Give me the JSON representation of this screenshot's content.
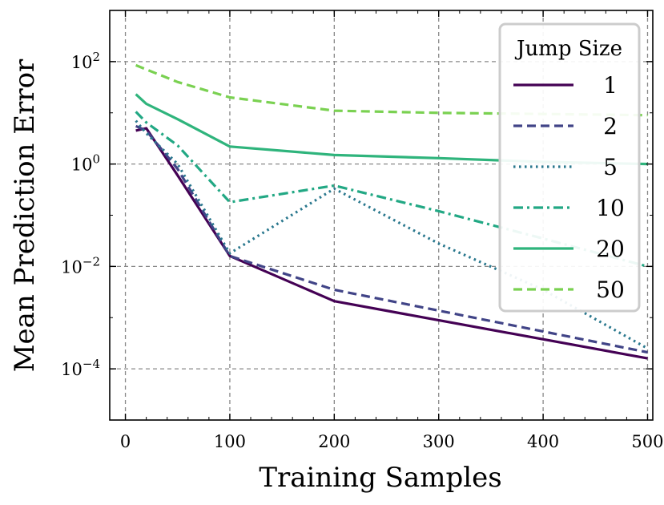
{
  "chart_data": {
    "type": "line",
    "xlabel": "Training Samples",
    "ylabel": "Mean Prediction Error",
    "yscale": "log",
    "xlim": [
      -15,
      505
    ],
    "ylim": [
      1e-05,
      1000
    ],
    "xticks": [
      0,
      100,
      200,
      300,
      400,
      500
    ],
    "yticks": [
      {
        "value": 0.0001,
        "base": "10",
        "exp": "−4"
      },
      {
        "value": 0.01,
        "base": "10",
        "exp": "−2"
      },
      {
        "value": 1,
        "base": "10",
        "exp": "0"
      },
      {
        "value": 100,
        "base": "10",
        "exp": "2"
      }
    ],
    "grid": true,
    "legend": {
      "title": "Jump Size",
      "position": "top-right"
    },
    "series": [
      {
        "name": "1",
        "color": "#440154",
        "dash": "solid",
        "x": [
          10,
          20,
          50,
          100,
          200,
          500
        ],
        "values": [
          4.5,
          5.0,
          0.6,
          0.016,
          0.0021,
          0.00016
        ]
      },
      {
        "name": "2",
        "color": "#414487",
        "dash": "dashed",
        "x": [
          10,
          20,
          50,
          100,
          200,
          500
        ],
        "values": [
          5.5,
          4.5,
          0.8,
          0.016,
          0.0035,
          0.00021
        ]
      },
      {
        "name": "5",
        "color": "#2a788e",
        "dash": "dotted",
        "x": [
          10,
          20,
          50,
          100,
          200,
          300,
          400,
          500
        ],
        "values": [
          7.0,
          4.0,
          1.0,
          0.018,
          0.33,
          0.028,
          0.0035,
          0.00025
        ]
      },
      {
        "name": "10",
        "color": "#22a884",
        "dash": "dashdot",
        "x": [
          10,
          20,
          50,
          100,
          200,
          300,
          400,
          500
        ],
        "values": [
          10.5,
          6.5,
          2.3,
          0.18,
          0.38,
          0.12,
          0.035,
          0.01
        ]
      },
      {
        "name": "20",
        "color": "#2fb47c",
        "dash": "solid",
        "x": [
          10,
          20,
          50,
          100,
          200,
          300,
          400,
          500
        ],
        "values": [
          23,
          15,
          7.5,
          2.2,
          1.5,
          1.3,
          1.1,
          1.0
        ]
      },
      {
        "name": "50",
        "color": "#7ad151",
        "dash": "dashed",
        "x": [
          10,
          50,
          100,
          200,
          300,
          400,
          500
        ],
        "values": [
          85,
          40,
          20,
          11,
          10,
          9.5,
          9.0
        ]
      }
    ]
  }
}
